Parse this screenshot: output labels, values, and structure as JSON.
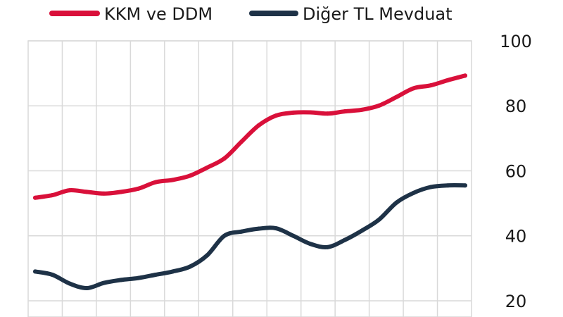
{
  "chart_data": {
    "type": "line",
    "xlabel": "",
    "ylabel": "",
    "ylim": [
      15,
      100
    ],
    "y_ticks": [
      20,
      40,
      60,
      80,
      100
    ],
    "grid": true,
    "legend_position": "top",
    "series": [
      {
        "name": "KKM ve DDM",
        "color": "#d9103a",
        "values": [
          51.7,
          52.5,
          54.0,
          53.5,
          53.0,
          53.5,
          54.5,
          56.5,
          57.2,
          58.5,
          61.0,
          63.8,
          69.0,
          74.0,
          77.0,
          77.9,
          78.0,
          77.6,
          78.3,
          78.8,
          80.1,
          82.7,
          85.4,
          86.3,
          87.9,
          89.3
        ]
      },
      {
        "name": "Diğer TL Mevduat",
        "color": "#1e3247",
        "values": [
          29.0,
          28.0,
          25.3,
          23.9,
          25.5,
          26.4,
          27.0,
          28.0,
          29.0,
          30.5,
          34.0,
          40.0,
          41.3,
          42.2,
          42.3,
          40.0,
          37.5,
          36.5,
          38.7,
          41.6,
          45.0,
          50.2,
          53.2,
          55.0,
          55.5,
          55.5
        ]
      }
    ]
  }
}
